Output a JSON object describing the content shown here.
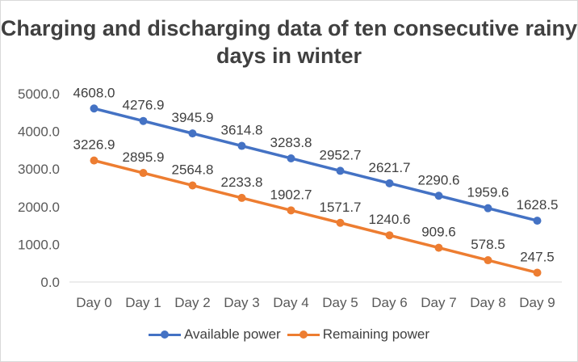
{
  "chart_data": {
    "type": "line",
    "title": "Charging and discharging data of ten consecutive rainy days in winter",
    "categories": [
      "Day 0",
      "Day 1",
      "Day 2",
      "Day 3",
      "Day 4",
      "Day 5",
      "Day 6",
      "Day 7",
      "Day 8",
      "Day 9"
    ],
    "series": [
      {
        "name": "Available power",
        "color": "#4472c4",
        "values": [
          4608.0,
          4276.9,
          3945.9,
          3614.8,
          3283.8,
          2952.7,
          2621.7,
          2290.6,
          1959.6,
          1628.5
        ],
        "labels": [
          "4608.0",
          "4276.9",
          "3945.9",
          "3614.8",
          "3283.8",
          "2952.7",
          "2621.7",
          "2290.6",
          "1959.6",
          "1628.5"
        ]
      },
      {
        "name": "Remaining power",
        "color": "#ed7d31",
        "values": [
          3226.9,
          2895.9,
          2564.8,
          2233.8,
          1902.7,
          1571.7,
          1240.6,
          909.6,
          578.5,
          247.5
        ],
        "labels": [
          "3226.9",
          "2895.9",
          "2564.8",
          "2233.8",
          "1902.7",
          "1571.7",
          "1240.6",
          "909.6",
          "578.5",
          "247.5"
        ]
      }
    ],
    "yticks": [
      "0.0",
      "1000.0",
      "2000.0",
      "3000.0",
      "4000.0",
      "5000.0"
    ],
    "ylim": [
      0,
      5000
    ],
    "grid": false,
    "legend_position": "bottom"
  }
}
